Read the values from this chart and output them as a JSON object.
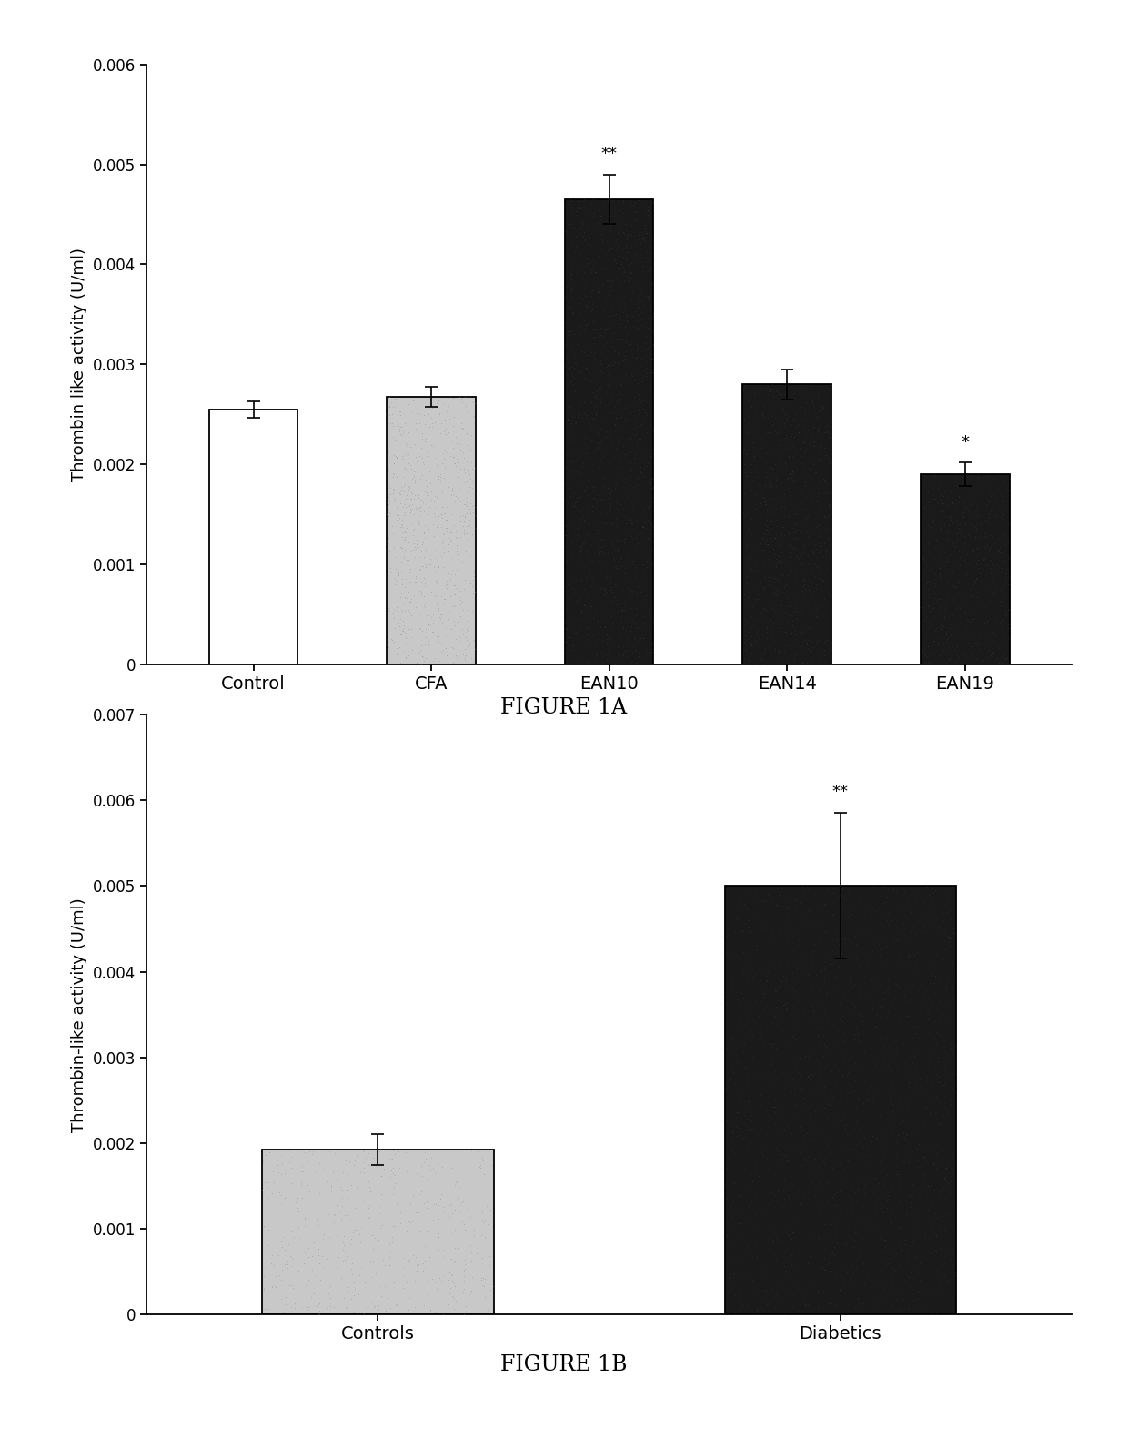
{
  "fig1a": {
    "categories": [
      "Control",
      "CFA",
      "EAN10",
      "EAN14",
      "EAN19"
    ],
    "values": [
      0.00255,
      0.00268,
      0.00465,
      0.0028,
      0.0019
    ],
    "errors": [
      8e-05,
      0.0001,
      0.00025,
      0.00015,
      0.00012
    ],
    "colors": [
      "#ffffff",
      "#c8c8c8",
      "#2a2a2a",
      "#2a2a2a",
      "#2a2a2a"
    ],
    "edge_colors": [
      "#000000",
      "#000000",
      "#000000",
      "#000000",
      "#000000"
    ],
    "annotations": [
      "",
      "",
      "**",
      "",
      "*"
    ],
    "ylabel": "Thrombin like activity (U/ml)",
    "ylim": [
      0,
      0.006
    ],
    "yticks": [
      0,
      0.001,
      0.002,
      0.003,
      0.004,
      0.005,
      0.006
    ],
    "title": "FIGURE 1A"
  },
  "fig1b": {
    "categories": [
      "Controls",
      "Diabetics"
    ],
    "values": [
      0.00193,
      0.005
    ],
    "errors": [
      0.00018,
      0.00085
    ],
    "colors": [
      "#c8c8c8",
      "#2a2a2a"
    ],
    "edge_colors": [
      "#000000",
      "#000000"
    ],
    "annotations": [
      "",
      "**"
    ],
    "ylabel": "Thrombin-like activity (U/ml)",
    "ylim": [
      0,
      0.007
    ],
    "yticks": [
      0,
      0.001,
      0.002,
      0.003,
      0.004,
      0.005,
      0.006,
      0.007
    ],
    "title": "FIGURE 1B"
  },
  "bar_width": 0.5,
  "figure_bg": "#ffffff",
  "annotation_fontsize": 13,
  "axis_fontsize": 13,
  "tick_fontsize": 12,
  "title_fontsize": 17,
  "label_fontsize": 14
}
